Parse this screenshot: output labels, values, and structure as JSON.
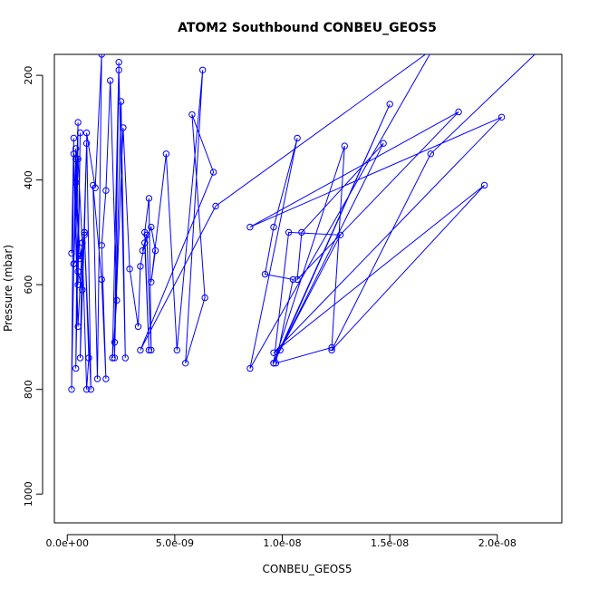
{
  "chart_data": {
    "type": "line",
    "title": "ATOM2 Southbound CONBEU_GEOS5",
    "xlabel": "CONBEU_GEOS5",
    "ylabel": "Pressure (mbar)",
    "xlim": [
      -6e-10,
      2.3e-08
    ],
    "ylim": [
      1055,
      160
    ],
    "y_reversed": true,
    "grid": false,
    "legend": "none",
    "series_color": "#0000ff",
    "x_ticks": [
      {
        "value": 0.0,
        "label": "0.0e+00"
      },
      {
        "value": 5e-09,
        "label": "5.0e-09"
      },
      {
        "value": 1e-08,
        "label": "1.0e-08"
      },
      {
        "value": 1.5e-08,
        "label": "1.5e-08"
      },
      {
        "value": 2e-08,
        "label": "2.0e-08"
      }
    ],
    "y_ticks": [
      {
        "value": 200,
        "label": "200"
      },
      {
        "value": 400,
        "label": "400"
      },
      {
        "value": 600,
        "label": "600"
      },
      {
        "value": 800,
        "label": "800"
      },
      {
        "value": 1000,
        "label": "1000"
      }
    ],
    "series": [
      {
        "x": [
          2e-10,
          3e-10,
          2e-10,
          4e-10,
          3e-10,
          5e-10,
          4e-10,
          6e-10,
          5e-10,
          4e-10,
          3e-10,
          5e-10,
          7e-10,
          6e-10,
          8e-10,
          9e-10,
          7e-10,
          5e-10,
          4e-10,
          6e-10,
          8e-10,
          1e-09,
          9e-10,
          7e-10,
          5e-10,
          3e-10,
          6e-10,
          8e-10,
          1.1e-09,
          9e-10,
          1.3e-09,
          1.6e-09,
          1.4e-09,
          1.2e-09,
          1.6e-09,
          1.8e-09,
          1.6e-09,
          1.8e-09,
          2e-09,
          2.3e-09,
          2.1e-09,
          2.4e-09,
          2.2e-09,
          2.5e-09,
          2.7e-09,
          2.4e-09,
          2.2e-09,
          2.6e-09,
          2.9e-09,
          3.3e-09,
          3.4e-09,
          3.6e-09,
          3.8e-09,
          3.6e-09,
          3.8e-09,
          3.9e-09,
          3.7e-09,
          3.5e-09,
          3.9e-09,
          4.1e-09,
          3.9e-09,
          4.6e-09,
          5.1e-09,
          6.3e-09,
          5.5e-09,
          6.4e-09,
          5.8e-09,
          6.8e-09,
          3.4e-09,
          6.9e-09,
          1.7e-08,
          8.5e-09,
          1.07e-08,
          9.6e-09,
          9.2e-09,
          1.05e-08,
          9.7e-09,
          1.23e-08,
          1.29e-08,
          9.6e-09,
          1.03e-08,
          1.27e-08,
          9.9e-09,
          1.5e-08,
          9.6e-09,
          1.47e-08,
          1.09e-08,
          1.07e-08,
          1.82e-08,
          8.5e-09,
          2.02e-08,
          9.6e-09,
          1.94e-08,
          1.23e-08,
          1.69e-08,
          2.2e-08
        ],
        "y": [
          540,
          320,
          800,
          340,
          560,
          290,
          760,
          310,
          600,
          360,
          350,
          680,
          520,
          740,
          500,
          330,
          610,
          575,
          405,
          550,
          500,
          740,
          800,
          520,
          360,
          560,
          545,
          505,
          800,
          310,
          415,
          160,
          780,
          410,
          590,
          780,
          525,
          420,
          210,
          630,
          740,
          175,
          740,
          250,
          740,
          190,
          710,
          300,
          570,
          680,
          565,
          520,
          725,
          500,
          435,
          725,
          505,
          535,
          490,
          535,
          595,
          350,
          725,
          190,
          750,
          625,
          275,
          385,
          725,
          450,
          150,
          760,
          320,
          490,
          580,
          590,
          750,
          720,
          335,
          750,
          500,
          505,
          725,
          255,
          750,
          330,
          500,
          590,
          270,
          490,
          280,
          730,
          410,
          725,
          350,
          150
        ]
      }
    ]
  }
}
